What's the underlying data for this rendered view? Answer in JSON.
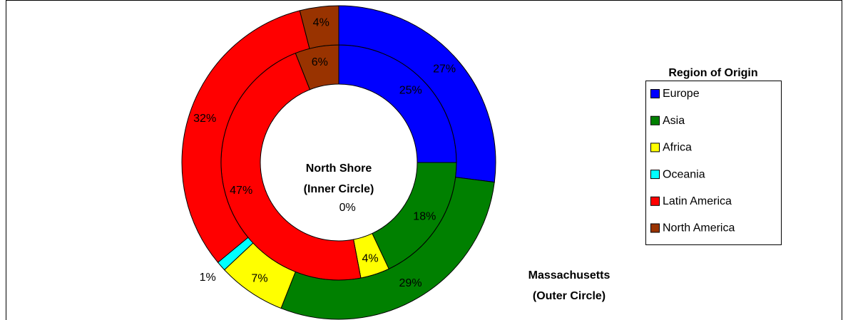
{
  "chart_data": {
    "type": "donut",
    "legend_title": "Region of Origin",
    "categories": [
      "Europe",
      "Asia",
      "Africa",
      "Oceania",
      "Latin America",
      "North America"
    ],
    "colors": [
      "#0000ff",
      "#008000",
      "#ffff00",
      "#00ffff",
      "#ff0000",
      "#993300"
    ],
    "series": [
      {
        "name": "North Shore",
        "subtitle": "(Inner Circle)",
        "values": [
          25,
          18,
          4,
          0,
          47,
          6
        ],
        "value_labels": [
          "25%",
          "18%",
          "4%",
          "0%",
          "47%",
          "6%"
        ]
      },
      {
        "name": "Massachusetts",
        "subtitle": "(Outer Circle)",
        "values": [
          27,
          29,
          7,
          1,
          32,
          4
        ],
        "value_labels": [
          "27%",
          "29%",
          "7%",
          "1%",
          "32%",
          "4%"
        ]
      }
    ]
  }
}
